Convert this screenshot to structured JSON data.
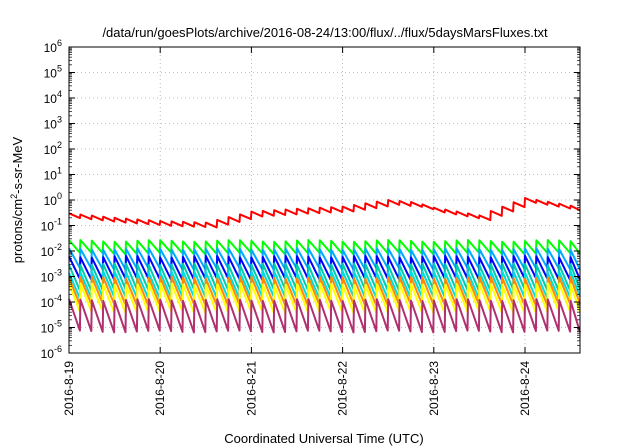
{
  "chart_data": {
    "type": "line",
    "title": "/data/run/goesPlots/archive/2016-08-24/13:00/flux/../flux/5daysMarsFluxes.txt",
    "xlabel": "Coordinated Universal Time (UTC)",
    "ylabel_parts": [
      "protons/cm",
      "2",
      "-s-sr-MeV"
    ],
    "x_ticks": [
      "2016-8-19",
      "2016-8-20",
      "2016-8-21",
      "2016-8-22",
      "2016-8-23",
      "2016-8-24"
    ],
    "xlim": [
      "2016-08-19 00:00",
      "2016-08-24 13:00"
    ],
    "y_scale": "log",
    "ylim": [
      1e-06,
      1000000.0
    ],
    "y_ticks": [
      {
        "base": "10",
        "exp": "-6"
      },
      {
        "base": "10",
        "exp": "-5"
      },
      {
        "base": "10",
        "exp": "-4"
      },
      {
        "base": "10",
        "exp": "-3"
      },
      {
        "base": "10",
        "exp": "-2"
      },
      {
        "base": "10",
        "exp": "-1"
      },
      {
        "base": "10",
        "exp": "0"
      },
      {
        "base": "10",
        "exp": "1"
      },
      {
        "base": "10",
        "exp": "2"
      },
      {
        "base": "10",
        "exp": "3"
      },
      {
        "base": "10",
        "exp": "4"
      },
      {
        "base": "10",
        "exp": "5"
      },
      {
        "base": "10",
        "exp": "6"
      }
    ],
    "grid": true,
    "sawtooth_period_days": 0.125,
    "series": [
      {
        "color": "#ff0000",
        "style": "sawtooth-envelope",
        "envelope_x": [
          0.0,
          0.5,
          1.0,
          1.5,
          2.0,
          2.5,
          3.0,
          3.5,
          3.8,
          4.0,
          4.5,
          5.0,
          5.5,
          5.54
        ],
        "envelope_y": [
          0.3,
          0.2,
          0.15,
          0.13,
          0.35,
          0.45,
          0.55,
          1.0,
          0.8,
          0.5,
          0.25,
          1.2,
          0.6,
          1.8
        ],
        "drop_factor": 0.65
      },
      {
        "color": "#00ff00",
        "style": "sawtooth",
        "peak": 0.025,
        "trough": 0.008
      },
      {
        "color": "#00aaff",
        "style": "sawtooth",
        "peak": 0.012,
        "trough": 0.002
      },
      {
        "color": "#0000ff",
        "style": "sawtooth",
        "peak": 0.006,
        "trough": 0.0008
      },
      {
        "color": "#00ccaa",
        "style": "sawtooth",
        "peak": 0.003,
        "trough": 0.0003
      },
      {
        "color": "#00dddd",
        "style": "sawtooth",
        "peak": 0.0015,
        "trough": 0.00015
      },
      {
        "color": "#ff8800",
        "style": "sawtooth",
        "peak": 0.0009,
        "trough": 8e-05
      },
      {
        "color": "#ffff00",
        "style": "sawtooth",
        "peak": 0.0005,
        "trough": 4e-05
      },
      {
        "color": "#b03070",
        "style": "sawtooth",
        "peak": 0.00012,
        "trough": 7e-06
      }
    ]
  }
}
